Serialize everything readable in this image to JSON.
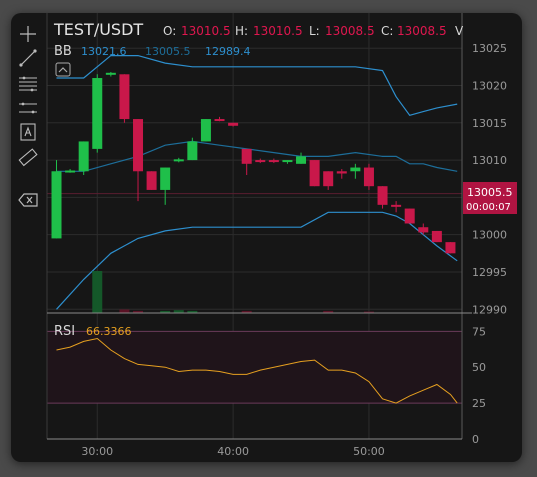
{
  "header": {
    "symbol": "TEST/USDT",
    "ohlc": [
      {
        "label": "O:",
        "value": "13010.5"
      },
      {
        "label": "H:",
        "value": "13010.5"
      },
      {
        "label": "L:",
        "value": "13008.5"
      },
      {
        "label": "C:",
        "value": "13008.5"
      },
      {
        "label": "V",
        "value": ""
      }
    ]
  },
  "toolbar": {
    "tools": [
      {
        "name": "crosshair-icon"
      },
      {
        "name": "trend-line-icon"
      },
      {
        "name": "fibonacci-icon"
      },
      {
        "name": "parallel-channel-icon"
      },
      {
        "name": "text-annotation-icon"
      },
      {
        "name": "ruler-icon"
      },
      {
        "name": "delete-drawing-icon"
      }
    ]
  },
  "indicators": {
    "bb": {
      "label": "BB",
      "upper": "13021.6",
      "middle": "13005.5",
      "lower": "12989.4"
    },
    "rsi": {
      "label": "RSI",
      "value": "66.3366"
    }
  },
  "price_marker": {
    "price": "13005.5",
    "countdown": "00:00:07"
  },
  "colors": {
    "up": "#1fbf4a",
    "down": "#c9184a",
    "bb_band": "#2d8fce",
    "bb_middle": "#1d6e9a",
    "rsi_line": "#e6a020",
    "grid": "#2c2c2c",
    "axis_text": "#9a9a9a",
    "marker_bg": "#b01442"
  },
  "chart_data": [
    {
      "type": "candlestick",
      "title": "TEST/USDT",
      "x_ticks": [
        "30:00",
        "40:00",
        "50:00"
      ],
      "y_ticks": [
        12990,
        12995,
        13000,
        13005,
        13010,
        13015,
        13020,
        13025
      ],
      "ylim": [
        12989.5,
        13026.5
      ],
      "candles": [
        {
          "t": 27,
          "o": 12999.5,
          "h": 13010,
          "l": 12999.5,
          "c": 13008.5,
          "v": 0
        },
        {
          "t": 28,
          "o": 13008.5,
          "h": 13008.8,
          "l": 13008.3,
          "c": 13008.6,
          "v": 0
        },
        {
          "t": 29,
          "o": 13008.5,
          "h": 13012.5,
          "l": 13008.0,
          "c": 13012.5,
          "v": 0
        },
        {
          "t": 30,
          "o": 13011.5,
          "h": 13021.5,
          "l": 13011.0,
          "c": 13021.0,
          "v": 6
        },
        {
          "t": 31,
          "o": 13021.5,
          "h": 13021.8,
          "l": 13021.2,
          "c": 13021.7,
          "v": 0
        },
        {
          "t": 32,
          "o": 13021.5,
          "h": 13021.5,
          "l": 13015.0,
          "c": 13015.5,
          "v": 0.5
        },
        {
          "t": 33,
          "o": 13015.5,
          "h": 13015.5,
          "l": 13004.5,
          "c": 13008.5,
          "v": 0.3
        },
        {
          "t": 34,
          "o": 13008.5,
          "h": 13008.5,
          "l": 13006.0,
          "c": 13006.0,
          "v": 0
        },
        {
          "t": 35,
          "o": 13006.0,
          "h": 13009.0,
          "l": 13004.0,
          "c": 13009.0,
          "v": 0.3
        },
        {
          "t": 36,
          "o": 13010.0,
          "h": 13010.3,
          "l": 13009.7,
          "c": 13010.1,
          "v": 0.4
        },
        {
          "t": 37,
          "o": 13010.0,
          "h": 13013.0,
          "l": 13010.0,
          "c": 13012.5,
          "v": 0.3
        },
        {
          "t": 38,
          "o": 13012.5,
          "h": 13015.5,
          "l": 13012.5,
          "c": 13015.5,
          "v": 0
        },
        {
          "t": 39,
          "o": 13015.5,
          "h": 13015.8,
          "l": 13015.2,
          "c": 13015.3,
          "v": 0
        },
        {
          "t": 40,
          "o": 13015.0,
          "h": 13015.0,
          "l": 13014.5,
          "c": 13014.6,
          "v": 0
        },
        {
          "t": 41,
          "o": 13011.5,
          "h": 13011.5,
          "l": 13008.0,
          "c": 13009.5,
          "v": 0.3
        },
        {
          "t": 42,
          "o": 13010.0,
          "h": 13010.2,
          "l": 13009.6,
          "c": 13009.8,
          "v": 0
        },
        {
          "t": 43,
          "o": 13010.0,
          "h": 13010.2,
          "l": 13009.6,
          "c": 13009.8,
          "v": 0
        },
        {
          "t": 44,
          "o": 13009.8,
          "h": 13010.0,
          "l": 13009.5,
          "c": 13010.0,
          "v": 0
        },
        {
          "t": 45,
          "o": 13009.5,
          "h": 13011.0,
          "l": 13009.5,
          "c": 13010.5,
          "v": 0
        },
        {
          "t": 46,
          "o": 13010.0,
          "h": 13010.0,
          "l": 13006.5,
          "c": 13006.5,
          "v": 0
        },
        {
          "t": 47,
          "o": 13008.5,
          "h": 13008.5,
          "l": 13006.0,
          "c": 13006.5,
          "v": 0.3
        },
        {
          "t": 48,
          "o": 13008.5,
          "h": 13008.8,
          "l": 13007.5,
          "c": 13008.2,
          "v": 0
        },
        {
          "t": 49,
          "o": 13008.5,
          "h": 13009.5,
          "l": 13007.5,
          "c": 13009.0,
          "v": 0
        },
        {
          "t": 50,
          "o": 13009.0,
          "h": 13009.5,
          "l": 13006.0,
          "c": 13006.5,
          "v": 0.2
        },
        {
          "t": 51,
          "o": 13006.5,
          "h": 13006.5,
          "l": 13003.5,
          "c": 13004.0,
          "v": 0
        },
        {
          "t": 52,
          "o": 13004.0,
          "h": 13004.5,
          "l": 13003.0,
          "c": 13003.8,
          "v": 0
        },
        {
          "t": 53,
          "o": 13003.5,
          "h": 13003.5,
          "l": 13001.5,
          "c": 13001.5,
          "v": 0
        },
        {
          "t": 54,
          "o": 13001.0,
          "h": 13001.5,
          "l": 13000.0,
          "c": 13000.3,
          "v": 0
        },
        {
          "t": 55,
          "o": 13000.5,
          "h": 13000.5,
          "l": 12999.0,
          "c": 12999.0,
          "v": 0
        },
        {
          "t": 56,
          "o": 12999.0,
          "h": 12999.0,
          "l": 12997.5,
          "c": 12997.5,
          "v": 0
        }
      ],
      "bollinger": {
        "t": [
          27,
          29,
          31,
          33,
          35,
          37,
          39,
          41,
          43,
          45,
          47,
          49,
          51,
          52,
          53,
          54,
          55,
          56.5
        ],
        "upper": [
          13021,
          13021,
          13024,
          13024,
          13023,
          13022.5,
          13022.5,
          13022.5,
          13022.5,
          13022.5,
          13022.5,
          13022.5,
          13022,
          13018.5,
          13016,
          13016.5,
          13017,
          13017.5
        ],
        "middle": [
          13008.5,
          13008.5,
          13009.5,
          13010.5,
          13012,
          13012.5,
          13012,
          13011.5,
          13011,
          13010.5,
          13010.5,
          13011,
          13010.5,
          13010.5,
          13009.5,
          13009.5,
          13009,
          13008.5
        ],
        "lower": [
          12990,
          12994,
          12997.5,
          12999.5,
          13000.5,
          13001,
          13001,
          13001,
          13001,
          13001,
          13003,
          13003,
          13003,
          13002.5,
          13001.5,
          13000,
          12998.5,
          12996.5
        ]
      }
    },
    {
      "type": "line",
      "title": "RSI",
      "y_ticks": [
        0,
        25,
        50,
        75
      ],
      "ylim": [
        0,
        85
      ],
      "band": [
        25,
        75
      ],
      "t": [
        27,
        28,
        29,
        30,
        31,
        32,
        33,
        34,
        35,
        36,
        37,
        38,
        39,
        40,
        41,
        42,
        43,
        44,
        45,
        46,
        47,
        48,
        49,
        50,
        51,
        52,
        53,
        54,
        55,
        56,
        56.5
      ],
      "values": [
        62,
        64,
        68,
        70,
        62,
        56,
        52,
        51,
        50,
        47,
        48,
        48,
        47,
        45,
        45,
        48,
        50,
        52,
        54,
        55,
        48,
        48,
        46,
        40,
        28,
        25,
        30,
        34,
        38,
        31,
        25
      ]
    }
  ]
}
